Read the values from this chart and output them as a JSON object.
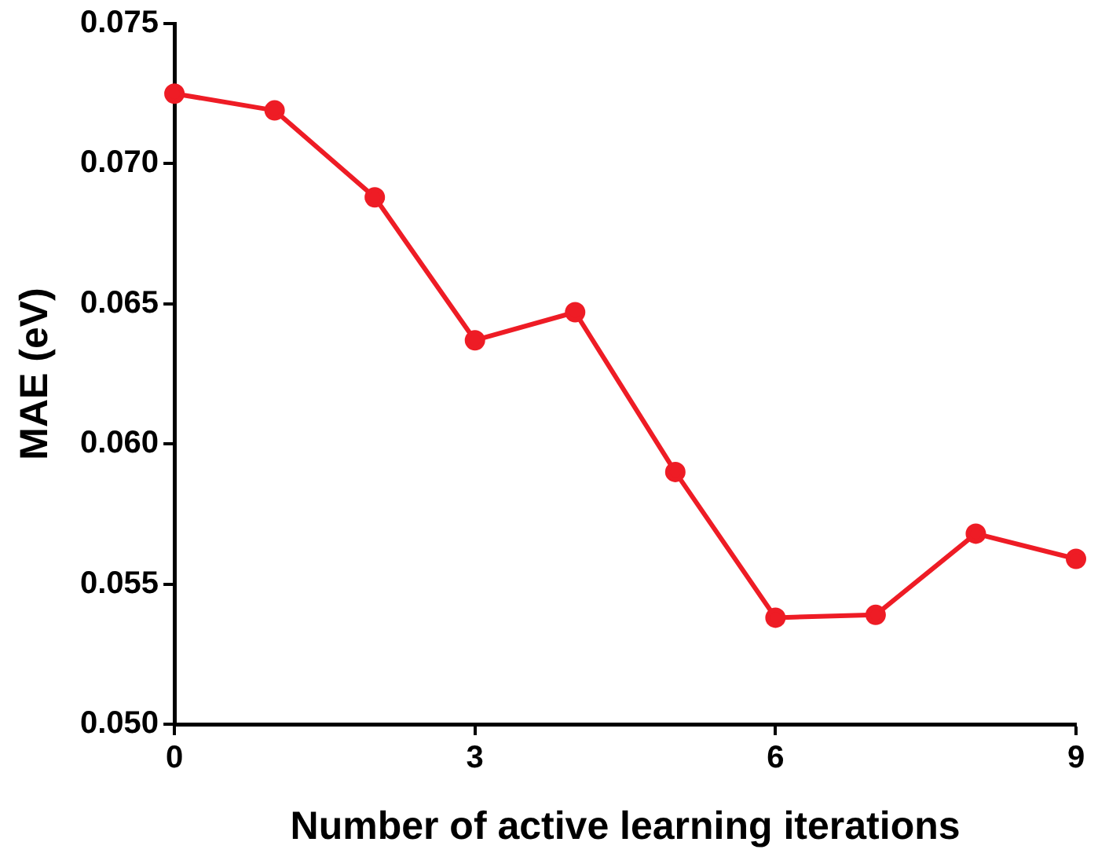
{
  "chart_data": {
    "type": "line",
    "xlabel": "Number of active learning iterations",
    "ylabel": "MAE (eV)",
    "x": [
      0,
      1,
      2,
      3,
      4,
      5,
      6,
      7,
      8,
      9
    ],
    "series": [
      {
        "color": "#ee1c25",
        "values": [
          0.0725,
          0.0719,
          0.0688,
          0.0637,
          0.0647,
          0.059,
          0.0538,
          0.0539,
          0.0568,
          0.0559
        ]
      }
    ],
    "xlim": [
      0,
      9
    ],
    "xticks": [
      0,
      3,
      6,
      9
    ],
    "ylim": [
      0.05,
      0.075
    ],
    "yticks": [
      {
        "value": 0.05,
        "label": "0.050"
      },
      {
        "value": 0.055,
        "label": "0.055"
      },
      {
        "value": 0.06,
        "label": "0.060"
      },
      {
        "value": 0.065,
        "label": "0.065"
      },
      {
        "value": 0.07,
        "label": "0.070"
      },
      {
        "value": 0.075,
        "label": "0.075"
      }
    ],
    "marker": "circle",
    "line_style": "solid",
    "grid": false,
    "legend": false
  }
}
